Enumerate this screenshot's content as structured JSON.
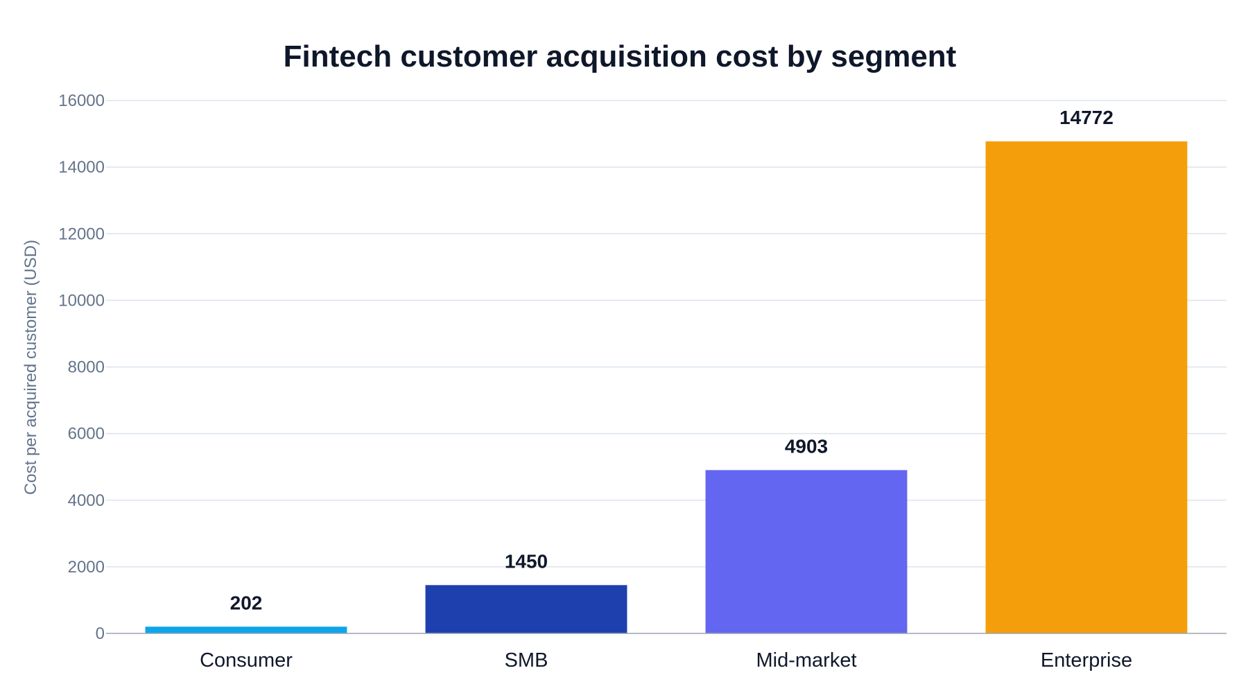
{
  "chart_data": {
    "type": "bar",
    "title": "Fintech customer acquisition cost by segment",
    "xlabel": "",
    "ylabel": "Cost per acquired customer (USD)",
    "categories": [
      "Consumer",
      "SMB",
      "Mid-market",
      "Enterprise"
    ],
    "values": [
      202,
      1450,
      4903,
      14772
    ],
    "colors": [
      "#0ea5e9",
      "#1e40af",
      "#6366f1",
      "#f59e0b"
    ],
    "ylim": [
      0,
      16000
    ],
    "yticks": [
      0,
      2000,
      4000,
      6000,
      8000,
      10000,
      12000,
      14000,
      16000
    ],
    "grid": true,
    "data_labels": true,
    "legend": "none"
  }
}
